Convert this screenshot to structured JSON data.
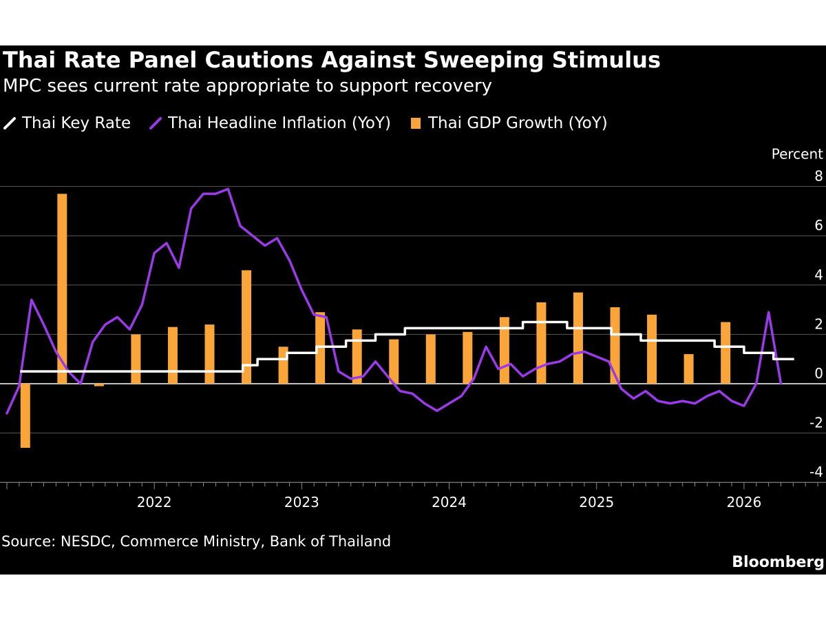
{
  "header": {
    "title": "Thai Rate Panel Cautions Against Sweeping Stimulus",
    "subtitle": "MPC sees current rate appropriate to support recovery"
  },
  "footer": {
    "source": "Source: NESDC, Commerce Ministry, Bank of Thailand",
    "brand": "Bloomberg"
  },
  "colors": {
    "background": "#000000",
    "key_rate": "#ffffff",
    "inflation": "#9b3ae8",
    "gdp": "#f9a53a",
    "grid": "#5a5a5a"
  },
  "chart_data": {
    "type": "bar",
    "ylabel": "Percent",
    "ylim": [
      -4,
      8
    ],
    "yticks": [
      8,
      6,
      4,
      2,
      0,
      -2,
      -4
    ],
    "xlim": [
      2021.0,
      2026.5
    ],
    "xticks": [
      2022,
      2023,
      2024,
      2025,
      2026
    ],
    "grid": true,
    "legend_position": "top-left",
    "series": [
      {
        "name": "Thai Key Rate",
        "kind": "step-line",
        "x": [
          2021.09,
          2021.5,
          2022.0,
          2022.5,
          2022.6,
          2022.7,
          2022.8,
          2022.9,
          2023.0,
          2023.1,
          2023.2,
          2023.3,
          2023.4,
          2023.5,
          2023.6,
          2023.7,
          2024.0,
          2024.5,
          2024.7,
          2024.8,
          2025.0,
          2025.1,
          2025.2,
          2025.3,
          2025.6,
          2025.8,
          2025.9,
          2026.0,
          2026.1,
          2026.2,
          2026.34
        ],
        "values": [
          0.5,
          0.5,
          0.5,
          0.5,
          0.75,
          1.0,
          1.0,
          1.25,
          1.25,
          1.5,
          1.5,
          1.75,
          1.75,
          2.0,
          2.0,
          2.25,
          2.25,
          2.5,
          2.5,
          2.25,
          2.25,
          2.0,
          2.0,
          1.75,
          1.75,
          1.5,
          1.5,
          1.25,
          1.25,
          1.0,
          1.0
        ]
      },
      {
        "name": "Thai Headline Inflation (YoY)",
        "kind": "line",
        "x": [
          2021.0,
          2021.083,
          2021.167,
          2021.25,
          2021.333,
          2021.417,
          2021.5,
          2021.583,
          2021.667,
          2021.75,
          2021.833,
          2021.917,
          2022.0,
          2022.083,
          2022.167,
          2022.25,
          2022.333,
          2022.417,
          2022.5,
          2022.583,
          2022.667,
          2022.75,
          2022.833,
          2022.917,
          2023.0,
          2023.083,
          2023.167,
          2023.25,
          2023.333,
          2023.417,
          2023.5,
          2023.583,
          2023.667,
          2023.75,
          2023.833,
          2023.917,
          2024.0,
          2024.083,
          2024.167,
          2024.25,
          2024.333,
          2024.417,
          2024.5,
          2024.583,
          2024.667,
          2024.75,
          2024.833,
          2024.917,
          2025.0,
          2025.083,
          2025.167,
          2025.25,
          2025.333,
          2025.417,
          2025.5,
          2025.583,
          2025.667,
          2025.75,
          2025.833,
          2025.917,
          2026.0,
          2026.083,
          2026.167,
          2026.25
        ],
        "values": [
          -1.2,
          -0.1,
          3.4,
          2.4,
          1.3,
          0.5,
          0.0,
          1.7,
          2.4,
          2.7,
          2.2,
          3.2,
          5.3,
          5.7,
          4.7,
          7.1,
          7.7,
          7.7,
          7.9,
          6.4,
          6.0,
          5.6,
          5.9,
          5.0,
          3.8,
          2.8,
          2.7,
          0.5,
          0.2,
          0.3,
          0.9,
          0.3,
          -0.3,
          -0.4,
          -0.8,
          -1.1,
          -0.8,
          -0.5,
          0.2,
          1.5,
          0.6,
          0.8,
          0.3,
          0.6,
          0.8,
          0.9,
          1.2,
          1.3,
          1.1,
          0.9,
          -0.2,
          -0.6,
          -0.3,
          -0.7,
          -0.8,
          -0.7,
          -0.8,
          -0.5,
          -0.3,
          -0.7,
          -0.9,
          0.0,
          2.9,
          0.0
        ]
      },
      {
        "name": "Thai GDP Growth (YoY)",
        "kind": "bar",
        "x": [
          2021.125,
          2021.375,
          2021.625,
          2021.875,
          2022.125,
          2022.375,
          2022.625,
          2022.875,
          2023.125,
          2023.375,
          2023.625,
          2023.875,
          2024.125,
          2024.375,
          2024.625,
          2024.875,
          2025.125,
          2025.375,
          2025.625,
          2025.875
        ],
        "values": [
          -2.6,
          7.7,
          -0.1,
          2.0,
          2.3,
          2.4,
          4.6,
          1.5,
          2.9,
          2.2,
          1.8,
          2.0,
          2.1,
          2.7,
          3.3,
          3.7,
          3.1,
          2.8,
          1.2,
          2.5
        ]
      }
    ]
  }
}
